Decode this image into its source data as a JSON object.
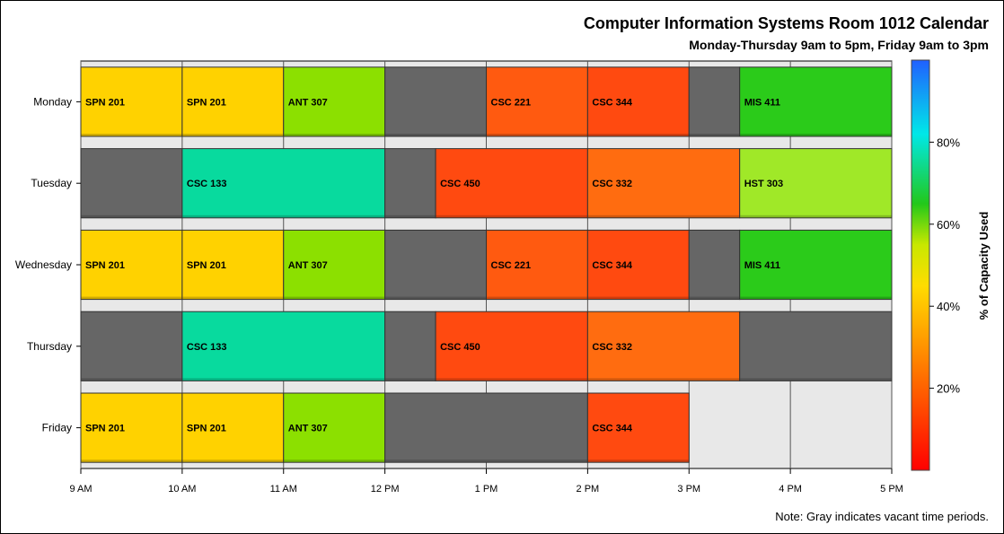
{
  "chart_data": {
    "type": "bar",
    "title": "Computer Information Systems Room 1012 Calendar",
    "subtitle": "Monday-Thursday 9am to 5pm, Friday 9am to 3pm",
    "note": "Note: Gray indicates vacant time periods.",
    "x_ticks": [
      {
        "hour": 9,
        "label": "9 AM"
      },
      {
        "hour": 10,
        "label": "10 AM"
      },
      {
        "hour": 11,
        "label": "11 AM"
      },
      {
        "hour": 12,
        "label": "12 PM"
      },
      {
        "hour": 13,
        "label": "1 PM"
      },
      {
        "hour": 14,
        "label": "2 PM"
      },
      {
        "hour": 15,
        "label": "3 PM"
      },
      {
        "hour": 16,
        "label": "4 PM"
      },
      {
        "hour": 17,
        "label": "5 PM"
      }
    ],
    "xlim": [
      9,
      17
    ],
    "days": [
      {
        "day": "Monday",
        "end": 17,
        "blocks": [
          {
            "start": 9,
            "end": 10,
            "label": "SPN 201",
            "color": "#FFD200"
          },
          {
            "start": 10,
            "end": 11,
            "label": "SPN 201",
            "color": "#FFD200"
          },
          {
            "start": 11,
            "end": 12,
            "label": "ANT 307",
            "color": "#8CE000"
          },
          {
            "start": 12,
            "end": 13,
            "label": "",
            "color": "#666666"
          },
          {
            "start": 13,
            "end": 14,
            "label": "CSC 221",
            "color": "#FF5A10"
          },
          {
            "start": 14,
            "end": 15,
            "label": "CSC 344",
            "color": "#FF4A10"
          },
          {
            "start": 15,
            "end": 15.5,
            "label": "",
            "color": "#666666"
          },
          {
            "start": 15.5,
            "end": 17,
            "label": "MIS 411",
            "color": "#2BCB1A"
          }
        ]
      },
      {
        "day": "Tuesday",
        "end": 17,
        "blocks": [
          {
            "start": 9,
            "end": 10,
            "label": "",
            "color": "#666666"
          },
          {
            "start": 10,
            "end": 12,
            "label": "CSC 133",
            "color": "#08DA9E"
          },
          {
            "start": 12,
            "end": 12.5,
            "label": "",
            "color": "#666666"
          },
          {
            "start": 12.5,
            "end": 14,
            "label": "CSC 450",
            "color": "#FF4A10"
          },
          {
            "start": 14,
            "end": 15.5,
            "label": "CSC 332",
            "color": "#FF6C10"
          },
          {
            "start": 15.5,
            "end": 17,
            "label": "HST 303",
            "color": "#A0E828"
          }
        ]
      },
      {
        "day": "Wednesday",
        "end": 17,
        "blocks": [
          {
            "start": 9,
            "end": 10,
            "label": "SPN 201",
            "color": "#FFD200"
          },
          {
            "start": 10,
            "end": 11,
            "label": "SPN 201",
            "color": "#FFD200"
          },
          {
            "start": 11,
            "end": 12,
            "label": "ANT 307",
            "color": "#8CE000"
          },
          {
            "start": 12,
            "end": 13,
            "label": "",
            "color": "#666666"
          },
          {
            "start": 13,
            "end": 14,
            "label": "CSC 221",
            "color": "#FF5A10"
          },
          {
            "start": 14,
            "end": 15,
            "label": "CSC 344",
            "color": "#FF4A10"
          },
          {
            "start": 15,
            "end": 15.5,
            "label": "",
            "color": "#666666"
          },
          {
            "start": 15.5,
            "end": 17,
            "label": "MIS 411",
            "color": "#2BCB1A"
          }
        ]
      },
      {
        "day": "Thursday",
        "end": 17,
        "blocks": [
          {
            "start": 9,
            "end": 10,
            "label": "",
            "color": "#666666"
          },
          {
            "start": 10,
            "end": 12,
            "label": "CSC 133",
            "color": "#08DA9E"
          },
          {
            "start": 12,
            "end": 12.5,
            "label": "",
            "color": "#666666"
          },
          {
            "start": 12.5,
            "end": 14,
            "label": "CSC 450",
            "color": "#FF4A10"
          },
          {
            "start": 14,
            "end": 15.5,
            "label": "CSC 332",
            "color": "#FF6C10"
          },
          {
            "start": 15.5,
            "end": 17,
            "label": "",
            "color": "#666666"
          }
        ]
      },
      {
        "day": "Friday",
        "end": 15,
        "blocks": [
          {
            "start": 9,
            "end": 10,
            "label": "SPN 201",
            "color": "#FFD200"
          },
          {
            "start": 10,
            "end": 11,
            "label": "SPN 201",
            "color": "#FFD200"
          },
          {
            "start": 11,
            "end": 12,
            "label": "ANT 307",
            "color": "#8CE000"
          },
          {
            "start": 12,
            "end": 14,
            "label": "",
            "color": "#666666"
          },
          {
            "start": 14,
            "end": 15,
            "label": "CSC 344",
            "color": "#FF4A10"
          }
        ]
      }
    ],
    "colorbar": {
      "label": "% of Capacity Used",
      "range": [
        0,
        100
      ],
      "ticks": [
        {
          "value": 20,
          "label": "20%"
        },
        {
          "value": 40,
          "label": "40%"
        },
        {
          "value": 60,
          "label": "60%"
        },
        {
          "value": 80,
          "label": "80%"
        }
      ],
      "stops": [
        {
          "value": 0,
          "color": "#FF0000"
        },
        {
          "value": 25,
          "color": "#FF7A00"
        },
        {
          "value": 45,
          "color": "#FFDC00"
        },
        {
          "value": 55,
          "color": "#C8E800"
        },
        {
          "value": 65,
          "color": "#22C81A"
        },
        {
          "value": 82,
          "color": "#00E8E8"
        },
        {
          "value": 100,
          "color": "#2060FF"
        }
      ]
    },
    "vacant_color": "#666666",
    "background_color": "#E8E8E8"
  }
}
